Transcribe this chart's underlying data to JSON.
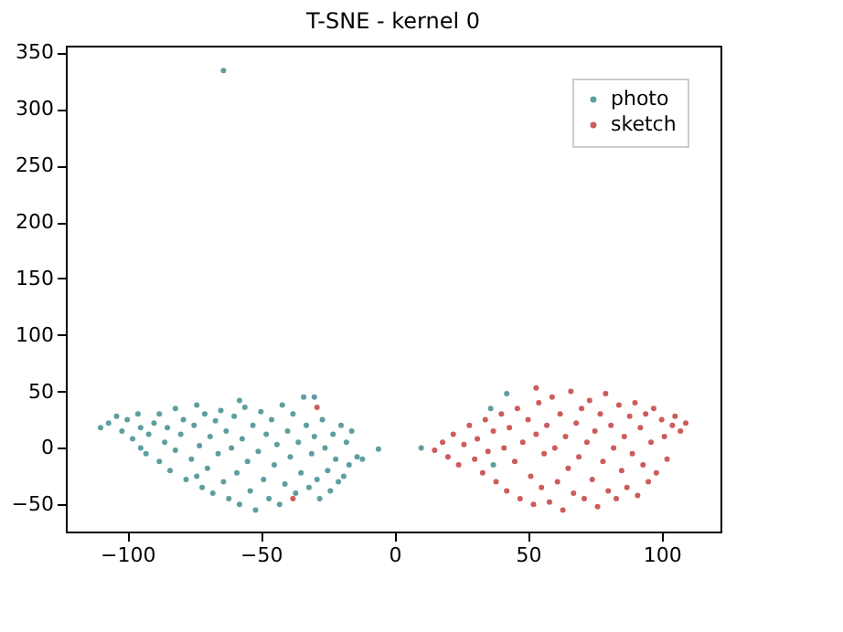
{
  "chart_data": {
    "type": "scatter",
    "title": "T-SNE - kernel 0",
    "xlim": [
      -123,
      122
    ],
    "ylim": [
      -74,
      356
    ],
    "xticks": [
      -100,
      -50,
      0,
      50,
      100
    ],
    "yticks": [
      -50,
      0,
      50,
      100,
      150,
      200,
      250,
      300,
      350
    ],
    "grid": false,
    "legend": "top right",
    "marker": "circle",
    "series": [
      {
        "name": "photo",
        "color": "#5f9ea0",
        "x": [
          -110,
          -107,
          -104,
          -102,
          -100,
          -98,
          -96,
          -95,
          -93,
          -92,
          -90,
          -88,
          -88,
          -86,
          -85,
          -84,
          -82,
          -82,
          -80,
          -79,
          -78,
          -76,
          -75,
          -74,
          -73,
          -72,
          -71,
          -70,
          -69,
          -68,
          -67,
          -66,
          -65,
          -64,
          -63,
          -62,
          -61,
          -60,
          -59,
          -58,
          -57,
          -56,
          -55,
          -54,
          -53,
          -52,
          -51,
          -50,
          -49,
          -48,
          -47,
          -46,
          -45,
          -44,
          -43,
          -42,
          -41,
          -40,
          -39,
          -38,
          -37,
          -36,
          -35,
          -34,
          -33,
          -32,
          -31,
          -30,
          -30,
          -29,
          -28,
          -27,
          -26,
          -25,
          -24,
          -23,
          -22,
          -21,
          -20,
          -19,
          -18,
          -17,
          -16,
          -14,
          -12,
          -6,
          10,
          42,
          36,
          37,
          -64,
          -74,
          -95,
          -58
        ],
        "values": [
          18,
          22,
          28,
          15,
          25,
          8,
          30,
          18,
          -5,
          12,
          22,
          -12,
          30,
          5,
          18,
          -20,
          35,
          -2,
          12,
          25,
          -28,
          -10,
          20,
          38,
          2,
          -35,
          30,
          -18,
          10,
          -40,
          24,
          -5,
          33,
          -30,
          15,
          -45,
          0,
          28,
          -22,
          -50,
          8,
          36,
          -12,
          -38,
          20,
          -55,
          -3,
          32,
          -28,
          12,
          -45,
          25,
          -15,
          3,
          -50,
          38,
          -32,
          15,
          -8,
          30,
          -40,
          5,
          -22,
          45,
          20,
          -35,
          -5,
          45,
          10,
          -28,
          -45,
          25,
          0,
          -20,
          -38,
          12,
          -10,
          -30,
          20,
          -25,
          5,
          -15,
          15,
          -8,
          -10,
          -1,
          0,
          48,
          35,
          -15,
          334,
          -25,
          0,
          42
        ]
      },
      {
        "name": "sketch",
        "color": "#cd5c5c",
        "x": [
          15,
          18,
          20,
          22,
          24,
          26,
          28,
          30,
          31,
          33,
          34,
          35,
          37,
          38,
          40,
          41,
          42,
          43,
          45,
          46,
          47,
          48,
          50,
          51,
          52,
          53,
          54,
          55,
          56,
          57,
          58,
          59,
          60,
          61,
          62,
          63,
          64,
          65,
          66,
          67,
          68,
          69,
          70,
          71,
          72,
          73,
          74,
          75,
          76,
          77,
          78,
          79,
          80,
          81,
          82,
          83,
          84,
          85,
          86,
          87,
          88,
          89,
          90,
          91,
          92,
          93,
          94,
          95,
          96,
          97,
          98,
          100,
          101,
          102,
          104,
          105,
          107,
          109,
          -29,
          -38,
          53
        ],
        "values": [
          -2,
          5,
          -8,
          12,
          -15,
          3,
          20,
          -10,
          8,
          -22,
          25,
          -3,
          15,
          -30,
          30,
          0,
          -38,
          18,
          -12,
          35,
          -45,
          5,
          25,
          -25,
          -50,
          12,
          40,
          -35,
          -5,
          20,
          -48,
          45,
          0,
          -30,
          30,
          -55,
          10,
          -18,
          50,
          -40,
          22,
          -8,
          35,
          -45,
          5,
          42,
          -28,
          15,
          -52,
          30,
          -12,
          48,
          -38,
          20,
          0,
          -45,
          38,
          -20,
          10,
          -35,
          28,
          -5,
          40,
          -42,
          18,
          -15,
          30,
          -30,
          5,
          35,
          -22,
          25,
          10,
          -10,
          20,
          28,
          15,
          22,
          36,
          -45,
          53
        ]
      }
    ]
  }
}
